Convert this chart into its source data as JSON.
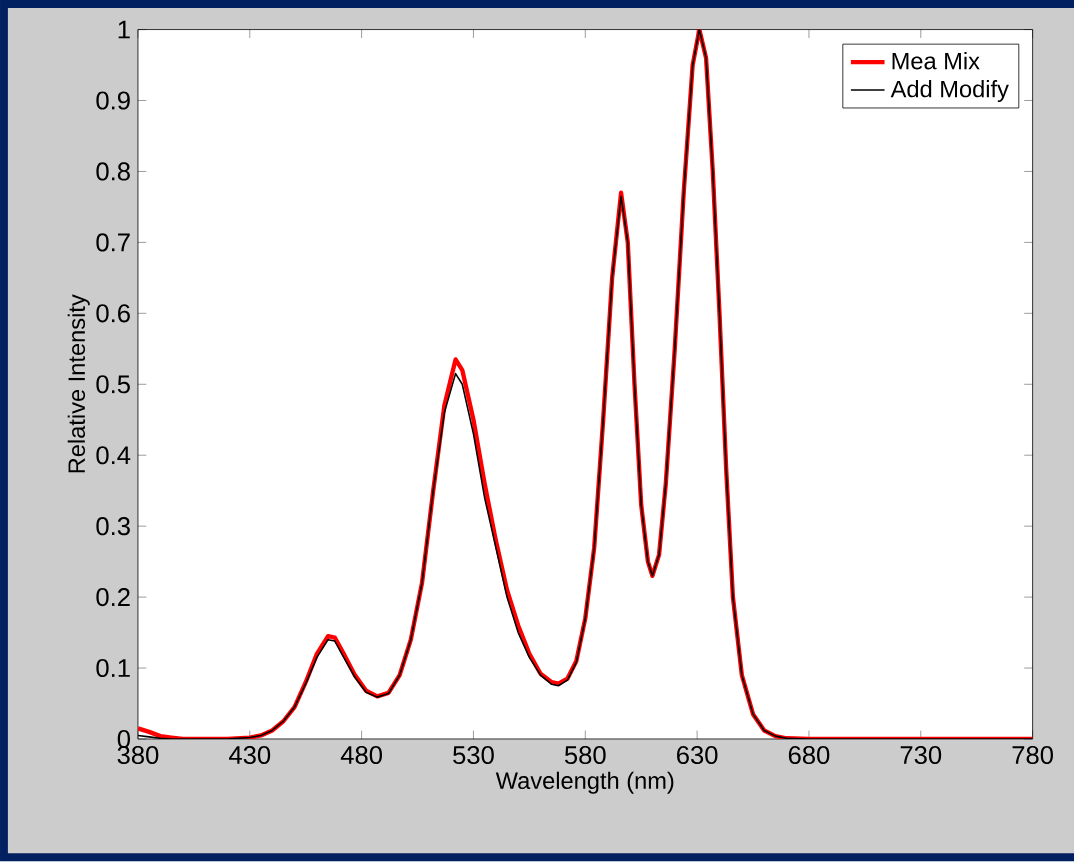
{
  "chart_data": {
    "type": "line",
    "xlabel": "Wavelength (nm)",
    "ylabel": "Relative Intensity",
    "xlim": [
      380,
      780
    ],
    "xticks": [
      380,
      430,
      480,
      530,
      580,
      630,
      680,
      730,
      780
    ],
    "ylim": [
      0,
      1
    ],
    "yticks": [
      0,
      0.1,
      0.2,
      0.3,
      0.4,
      0.5,
      0.6,
      0.7,
      0.8,
      0.9,
      1
    ],
    "grid": false,
    "legend": "top right",
    "marker": "none",
    "line_style": "solid",
    "series": [
      {
        "name": "Mea Mix",
        "color": "#ff0000",
        "x": [
          380,
          385,
          390,
          395,
          400,
          420,
          430,
          435,
          440,
          445,
          450,
          455,
          460,
          465,
          468,
          472,
          477,
          482,
          487,
          492,
          497,
          502,
          507,
          512,
          517,
          522,
          525,
          530,
          535,
          540,
          545,
          550,
          555,
          560,
          565,
          568,
          572,
          576,
          580,
          584,
          588,
          592,
          596,
          599,
          602,
          605,
          608,
          610,
          613,
          616,
          620,
          624,
          628,
          631,
          634,
          637,
          640,
          643,
          646,
          650,
          655,
          660,
          665,
          670,
          680,
          780
        ],
        "values": [
          0.015,
          0.01,
          0.004,
          0.002,
          0,
          0,
          0.002,
          0.005,
          0.012,
          0.025,
          0.045,
          0.08,
          0.12,
          0.145,
          0.143,
          0.12,
          0.09,
          0.068,
          0.06,
          0.065,
          0.09,
          0.14,
          0.22,
          0.35,
          0.47,
          0.535,
          0.52,
          0.45,
          0.36,
          0.28,
          0.21,
          0.16,
          0.12,
          0.092,
          0.08,
          0.078,
          0.085,
          0.11,
          0.17,
          0.27,
          0.45,
          0.65,
          0.77,
          0.7,
          0.5,
          0.33,
          0.25,
          0.23,
          0.26,
          0.36,
          0.55,
          0.77,
          0.95,
          1.0,
          0.96,
          0.8,
          0.6,
          0.38,
          0.2,
          0.09,
          0.035,
          0.012,
          0.004,
          0.001,
          0,
          0
        ]
      },
      {
        "name": "Add Modify",
        "color": "#000000",
        "x": [
          380,
          385,
          390,
          395,
          400,
          420,
          430,
          435,
          440,
          445,
          450,
          455,
          460,
          465,
          468,
          472,
          477,
          482,
          487,
          492,
          497,
          502,
          507,
          512,
          517,
          522,
          525,
          530,
          535,
          540,
          545,
          550,
          555,
          560,
          565,
          568,
          572,
          576,
          580,
          584,
          588,
          592,
          596,
          599,
          602,
          605,
          608,
          610,
          613,
          616,
          620,
          624,
          628,
          631,
          634,
          637,
          640,
          643,
          646,
          650,
          655,
          660,
          665,
          670,
          680,
          780
        ],
        "values": [
          0.005,
          0.003,
          0.001,
          0,
          0,
          0,
          0.002,
          0.005,
          0.012,
          0.025,
          0.045,
          0.078,
          0.115,
          0.14,
          0.138,
          0.115,
          0.087,
          0.066,
          0.059,
          0.064,
          0.09,
          0.14,
          0.22,
          0.35,
          0.46,
          0.515,
          0.5,
          0.43,
          0.34,
          0.27,
          0.2,
          0.15,
          0.115,
          0.09,
          0.077,
          0.075,
          0.083,
          0.108,
          0.17,
          0.27,
          0.45,
          0.65,
          0.765,
          0.7,
          0.5,
          0.33,
          0.25,
          0.23,
          0.26,
          0.36,
          0.55,
          0.77,
          0.95,
          1.0,
          0.96,
          0.8,
          0.6,
          0.38,
          0.2,
          0.09,
          0.035,
          0.012,
          0.004,
          0.001,
          0,
          0
        ]
      }
    ]
  }
}
